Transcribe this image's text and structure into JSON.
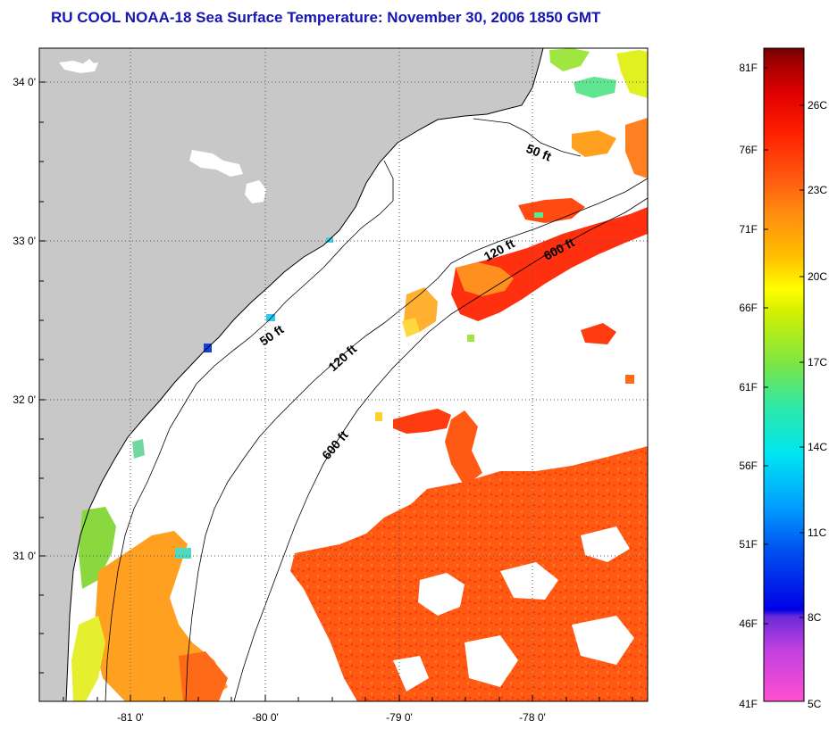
{
  "title": "RU COOL  NOAA-18  Sea Surface Temperature:  November 30, 2006 1850 GMT",
  "map": {
    "longitude_ticks": [
      "-81 0'",
      "-80 0'",
      "-79 0'",
      "-78 0'"
    ],
    "latitude_ticks": [
      "34 0'",
      "33 0'",
      "32 0'",
      "31 0'"
    ],
    "contour_labels": [
      {
        "text": "50 ft",
        "id": "upper"
      },
      {
        "text": "120 ft",
        "id": "upper"
      },
      {
        "text": "600 ft",
        "id": "upper"
      },
      {
        "text": "50 ft",
        "id": "lower"
      },
      {
        "text": "120 ft",
        "id": "lower"
      },
      {
        "text": "600 ft",
        "id": "lower"
      }
    ],
    "land_color": "#c8c8c8",
    "no_data_color": "#ffffff"
  },
  "colorbar": {
    "fahrenheit_labels": [
      "81F",
      "76F",
      "71F",
      "66F",
      "61F",
      "56F",
      "51F",
      "46F",
      "41F"
    ],
    "celsius_labels": [
      "26C",
      "23C",
      "20C",
      "17C",
      "14C",
      "11C",
      "8C",
      "5C"
    ],
    "colors": [
      "#ff4fd0",
      "#c040e0",
      "#6a2ad8",
      "#0000e6",
      "#0050f0",
      "#00a0ff",
      "#00e6f0",
      "#2ee8a8",
      "#80e640",
      "#d8f000",
      "#ffff00",
      "#ffc000",
      "#ff8a10",
      "#ff5a10",
      "#ff2000",
      "#e00000",
      "#a00000",
      "#700000"
    ]
  }
}
